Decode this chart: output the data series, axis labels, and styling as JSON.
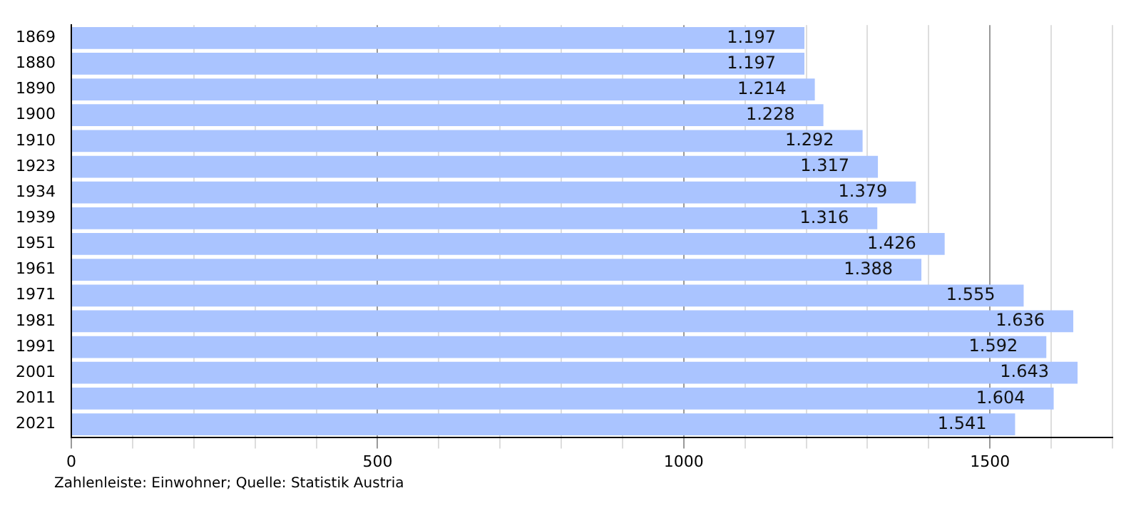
{
  "chart_data": {
    "type": "bar",
    "orientation": "horizontal",
    "categories": [
      "1869",
      "1880",
      "1890",
      "1900",
      "1910",
      "1923",
      "1934",
      "1939",
      "1951",
      "1961",
      "1971",
      "1981",
      "1991",
      "2001",
      "2011",
      "2021"
    ],
    "values": [
      1197,
      1197,
      1214,
      1228,
      1292,
      1317,
      1379,
      1316,
      1426,
      1388,
      1555,
      1636,
      1592,
      1643,
      1604,
      1541
    ],
    "value_labels": [
      "1.197",
      "1.197",
      "1.214",
      "1.228",
      "1.292",
      "1.317",
      "1.379",
      "1.316",
      "1.426",
      "1.388",
      "1.555",
      "1.636",
      "1.592",
      "1.643",
      "1.604",
      "1.541"
    ],
    "color": "#aac4ff",
    "xlim": [
      0,
      1700
    ],
    "xticks": [
      0,
      {
        "value": 100,
        "label": null
      },
      {
        "value": 200,
        "label": null
      },
      {
        "value": 300,
        "label": null
      },
      {
        "value": 400,
        "label": null
      },
      500,
      {
        "value": 600,
        "label": null
      },
      {
        "value": 700,
        "label": null
      },
      {
        "value": 800,
        "label": null
      },
      {
        "value": 900,
        "label": null
      },
      1000,
      {
        "value": 1100,
        "label": null
      },
      {
        "value": 1200,
        "label": null
      },
      {
        "value": 1300,
        "label": null
      },
      {
        "value": 1400,
        "label": null
      },
      1500,
      {
        "value": 1600,
        "label": null
      },
      {
        "value": 1700,
        "label": null
      }
    ],
    "grid": "x",
    "annotations": [
      "Zahlenleiste: Einwohner; Quelle: Statistik Austria"
    ]
  }
}
